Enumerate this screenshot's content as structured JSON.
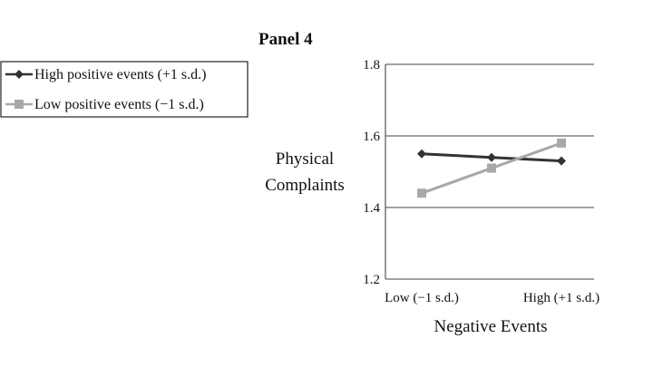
{
  "panel": {
    "title": "Panel 4"
  },
  "chart_data": {
    "type": "line",
    "title": "Panel 4",
    "xlabel": "Negative Events",
    "ylabel": [
      "Physical",
      "Complaints"
    ],
    "categories": [
      "Low (−1 s.d.)",
      "High (+1 s.d.)"
    ],
    "x": [
      0,
      0.5,
      1
    ],
    "y_ticks": [
      "1.2",
      "1.4",
      "1.6",
      "1.8"
    ],
    "ylim": [
      1.2,
      1.8
    ],
    "grid": true,
    "legend_position": "upper-left",
    "series": [
      {
        "name": "High positive events (+1 s.d.)",
        "values": [
          1.55,
          1.54,
          1.53
        ],
        "color": "#333333",
        "marker": "diamond"
      },
      {
        "name": "Low positive events (−1 s.d.)",
        "values": [
          1.44,
          1.51,
          1.58
        ],
        "color": "#a8a8a8",
        "marker": "square"
      }
    ]
  }
}
